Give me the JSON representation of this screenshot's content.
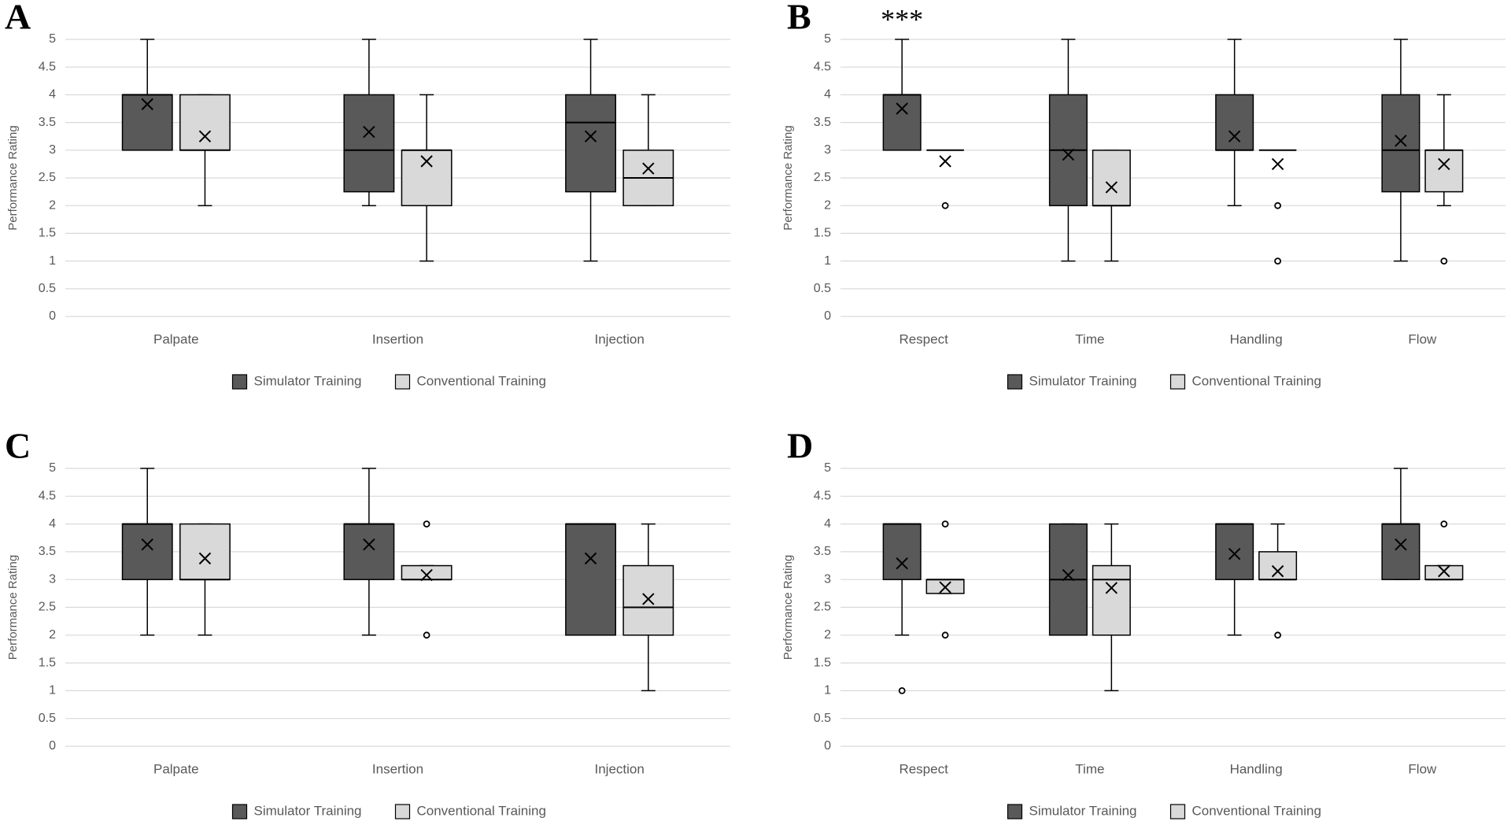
{
  "chart_data": [
    {
      "type": "box",
      "label": "A",
      "ylabel": "Performance Rating",
      "categories": [
        "Palpate",
        "Insertion",
        "Injection"
      ],
      "ylim": [
        0,
        5
      ],
      "yticks": [
        0,
        0.5,
        1,
        1.5,
        2,
        2.5,
        3,
        3.5,
        4,
        4.5,
        5
      ],
      "grid": true,
      "legend": "bottom",
      "series": [
        {
          "name": "Simulator Training",
          "color": "#595959",
          "boxes": [
            {
              "min": 3,
              "q1": 3,
              "median": 4,
              "q3": 4,
              "max": 5,
              "mean": 3.83
            },
            {
              "min": 2,
              "q1": 2.25,
              "median": 3,
              "q3": 4,
              "max": 5,
              "mean": 3.33
            },
            {
              "min": 1,
              "q1": 2.25,
              "median": 3.5,
              "q3": 4,
              "max": 5,
              "mean": 3.25
            }
          ]
        },
        {
          "name": "Conventional Training",
          "color": "#d9d9d9",
          "boxes": [
            {
              "min": 2,
              "q1": 3,
              "median": 3,
              "q3": 4,
              "max": 4,
              "mean": 3.25
            },
            {
              "min": 1,
              "q1": 2,
              "median": 3,
              "q3": 3,
              "max": 4,
              "mean": 2.8
            },
            {
              "min": 2,
              "q1": 2,
              "median": 2.5,
              "q3": 3,
              "max": 4,
              "mean": 2.67
            }
          ]
        }
      ]
    },
    {
      "type": "box",
      "label": "B",
      "annotation": "***",
      "ylabel": "Performance Rating",
      "categories": [
        "Respect",
        "Time",
        "Handling",
        "Flow"
      ],
      "ylim": [
        0,
        5
      ],
      "yticks": [
        0,
        0.5,
        1,
        1.5,
        2,
        2.5,
        3,
        3.5,
        4,
        4.5,
        5
      ],
      "grid": true,
      "legend": "bottom",
      "series": [
        {
          "name": "Simulator Training",
          "color": "#595959",
          "boxes": [
            {
              "min": 3,
              "q1": 3,
              "median": 4,
              "q3": 4,
              "max": 5,
              "mean": 3.75
            },
            {
              "min": 1,
              "q1": 2,
              "median": 3,
              "q3": 4,
              "max": 5,
              "mean": 2.92
            },
            {
              "min": 2,
              "q1": 3,
              "median": 3,
              "q3": 4,
              "max": 5,
              "mean": 3.25
            },
            {
              "min": 1,
              "q1": 2.25,
              "median": 3,
              "q3": 4,
              "max": 5,
              "mean": 3.17
            }
          ]
        },
        {
          "name": "Conventional Training",
          "color": "#d9d9d9",
          "boxes": [
            {
              "min": 3,
              "q1": 3,
              "median": 3,
              "q3": 3,
              "max": 3,
              "mean": 2.8,
              "outliers": [
                2
              ]
            },
            {
              "min": 1,
              "q1": 2,
              "median": 2,
              "q3": 3,
              "max": 3,
              "mean": 2.33
            },
            {
              "min": 3,
              "q1": 3,
              "median": 3,
              "q3": 3,
              "max": 3,
              "mean": 2.75,
              "outliers": [
                2,
                1
              ]
            },
            {
              "min": 2,
              "q1": 2.25,
              "median": 3,
              "q3": 3,
              "max": 4,
              "mean": 2.75,
              "outliers": [
                1
              ]
            }
          ]
        }
      ]
    },
    {
      "type": "box",
      "label": "C",
      "ylabel": "Performance Rating",
      "categories": [
        "Palpate",
        "Insertion",
        "Injection"
      ],
      "ylim": [
        0,
        5
      ],
      "yticks": [
        0,
        0.5,
        1,
        1.5,
        2,
        2.5,
        3,
        3.5,
        4,
        4.5,
        5
      ],
      "grid": true,
      "legend": "bottom",
      "series": [
        {
          "name": "Simulator Training",
          "color": "#595959",
          "boxes": [
            {
              "min": 2,
              "q1": 3,
              "median": 4,
              "q3": 4,
              "max": 5,
              "mean": 3.63
            },
            {
              "min": 2,
              "q1": 3,
              "median": 4,
              "q3": 4,
              "max": 5,
              "mean": 3.63
            },
            {
              "min": 2,
              "q1": 2,
              "median": 4,
              "q3": 4,
              "max": 4,
              "mean": 3.38
            }
          ]
        },
        {
          "name": "Conventional Training",
          "color": "#d9d9d9",
          "boxes": [
            {
              "min": 2,
              "q1": 3,
              "median": 3,
              "q3": 4,
              "max": 4,
              "mean": 3.38
            },
            {
              "min": 3,
              "q1": 3,
              "median": 3,
              "q3": 3.25,
              "max": 3.25,
              "mean": 3.08,
              "outliers": [
                4,
                2
              ]
            },
            {
              "min": 1,
              "q1": 2,
              "median": 2.5,
              "q3": 3.25,
              "max": 4,
              "mean": 2.65
            }
          ]
        }
      ]
    },
    {
      "type": "box",
      "label": "D",
      "ylabel": "Performance Rating",
      "categories": [
        "Respect",
        "Time",
        "Handling",
        "Flow"
      ],
      "ylim": [
        0,
        5
      ],
      "yticks": [
        0,
        0.5,
        1,
        1.5,
        2,
        2.5,
        3,
        3.5,
        4,
        4.5,
        5
      ],
      "grid": true,
      "legend": "bottom",
      "series": [
        {
          "name": "Simulator Training",
          "color": "#595959",
          "boxes": [
            {
              "min": 2,
              "q1": 3,
              "median": 4,
              "q3": 4,
              "max": 4,
              "mean": 3.29,
              "outliers": [
                1
              ]
            },
            {
              "min": 2,
              "q1": 2,
              "median": 3,
              "q3": 4,
              "max": 4,
              "mean": 3.08
            },
            {
              "min": 2,
              "q1": 3,
              "median": 4,
              "q3": 4,
              "max": 4,
              "mean": 3.46
            },
            {
              "min": 3,
              "q1": 3,
              "median": 4,
              "q3": 4,
              "max": 5,
              "mean": 3.63
            }
          ]
        },
        {
          "name": "Conventional Training",
          "color": "#d9d9d9",
          "boxes": [
            {
              "min": 2.75,
              "q1": 2.75,
              "median": 3,
              "q3": 3,
              "max": 3,
              "mean": 2.86,
              "outliers": [
                4,
                2
              ]
            },
            {
              "min": 1,
              "q1": 2,
              "median": 3,
              "q3": 3.25,
              "max": 4,
              "mean": 2.85
            },
            {
              "min": 3,
              "q1": 3,
              "median": 3,
              "q3": 3.5,
              "max": 4,
              "mean": 3.15,
              "outliers": [
                2
              ]
            },
            {
              "min": 3,
              "q1": 3,
              "median": 3,
              "q3": 3.25,
              "max": 3.25,
              "mean": 3.15,
              "outliers": [
                4
              ]
            }
          ]
        }
      ]
    }
  ]
}
